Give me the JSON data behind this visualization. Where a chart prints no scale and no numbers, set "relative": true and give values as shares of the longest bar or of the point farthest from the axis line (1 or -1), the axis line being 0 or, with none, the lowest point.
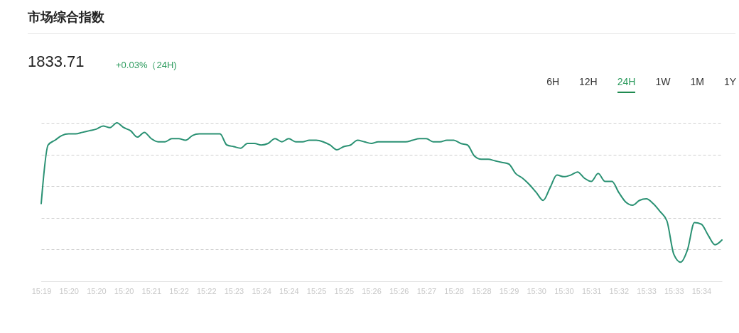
{
  "chart_data": {
    "type": "line",
    "title": "市场综合指数",
    "annotations": [
      "1833.71",
      "+0.03%（24H)",
      "6H",
      "12H",
      "24H",
      "1W",
      "1M",
      "1Y"
    ],
    "relative": true,
    "grid": "y",
    "marker": "none",
    "line_style": "solid",
    "categories": [
      "15:19",
      null,
      null,
      null,
      "15:20",
      null,
      null,
      null,
      "15:20",
      null,
      null,
      null,
      "15:20",
      null,
      null,
      null,
      "15:21",
      null,
      null,
      null,
      "15:22",
      null,
      null,
      null,
      "15:22",
      null,
      null,
      null,
      "15:23",
      null,
      null,
      null,
      "15:24",
      null,
      null,
      null,
      "15:24",
      null,
      null,
      null,
      "15:25",
      null,
      null,
      null,
      "15:25",
      null,
      null,
      null,
      "15:26",
      null,
      null,
      null,
      "15:26",
      null,
      null,
      null,
      "15:27",
      null,
      null,
      null,
      "15:28",
      null,
      null,
      null,
      "15:28",
      null,
      null,
      null,
      "15:29",
      null,
      null,
      null,
      "15:30",
      null,
      null,
      null,
      "15:30",
      null,
      null,
      null,
      "15:31",
      null,
      null,
      null,
      "15:32",
      null,
      null,
      null,
      "15:33",
      null,
      null,
      null,
      "15:33",
      null,
      null,
      null,
      "15:34",
      null,
      null,
      null
    ],
    "series": [
      {
        "color": "#2a9173",
        "values": [
          0.49,
          0.86,
          0.89,
          0.92,
          0.93,
          0.93,
          0.94,
          0.95,
          0.96,
          0.98,
          0.97,
          1.0,
          0.97,
          0.95,
          0.91,
          0.94,
          0.9,
          0.88,
          0.88,
          0.9,
          0.9,
          0.89,
          0.92,
          0.93,
          0.93,
          0.93,
          0.93,
          0.86,
          0.85,
          0.84,
          0.87,
          0.87,
          0.86,
          0.87,
          0.9,
          0.88,
          0.9,
          0.88,
          0.88,
          0.89,
          0.89,
          0.88,
          0.86,
          0.83,
          0.85,
          0.86,
          0.89,
          0.88,
          0.87,
          0.88,
          0.88,
          0.88,
          0.88,
          0.88,
          0.89,
          0.9,
          0.9,
          0.88,
          0.88,
          0.89,
          0.89,
          0.87,
          0.86,
          0.79,
          0.77,
          0.77,
          0.76,
          0.75,
          0.74,
          0.68,
          0.65,
          0.61,
          0.56,
          0.51,
          0.59,
          0.67,
          0.66,
          0.67,
          0.69,
          0.65,
          0.63,
          0.68,
          0.63,
          0.63,
          0.56,
          0.5,
          0.48,
          0.51,
          0.52,
          0.49,
          0.44,
          0.38,
          0.17,
          0.12,
          0.2,
          0.37,
          0.36,
          0.29,
          0.23,
          0.26
        ]
      }
    ]
  }
}
